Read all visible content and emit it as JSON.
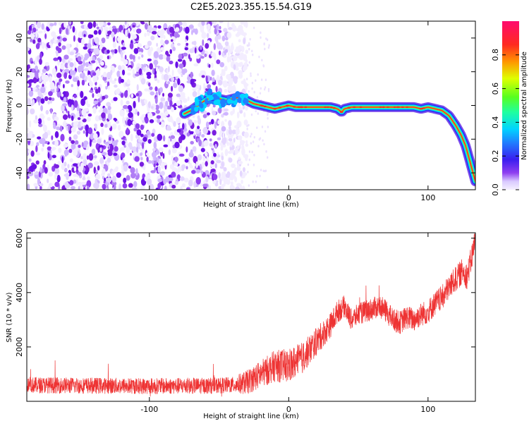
{
  "title": "C2E5.2023.355.15.54.G19",
  "colors": {
    "snr_line": "#ee3333",
    "spectrogram_noise": "#7a1fe0",
    "colormap": [
      "#f5f0ff",
      "#cdb6ff",
      "#8f3ff0",
      "#6a11e6",
      "#2a1ef0",
      "#1f7fff",
      "#00d4ff",
      "#1fff9f",
      "#58ff1f",
      "#dfff00",
      "#ff9500",
      "#ff2a1f",
      "#ff0a6e"
    ]
  },
  "chart_data": [
    {
      "type": "heatmap",
      "name": "spectrogram",
      "xlabel": "Height of straight line (km)",
      "ylabel": "Frequency (Hz)",
      "xlim": [
        -188,
        134
      ],
      "ylim": [
        -50,
        50
      ],
      "xticks": [
        -100,
        0,
        100
      ],
      "yticks": [
        -40,
        -20,
        0,
        20,
        40
      ],
      "noise_region_x": [
        -188,
        -30
      ],
      "ridge": {
        "x": [
          -75,
          -70,
          -65,
          -60,
          -55,
          -50,
          -45,
          -40,
          -35,
          -30,
          -25,
          -20,
          -15,
          -10,
          -5,
          0,
          5,
          10,
          20,
          30,
          35,
          38,
          40,
          45,
          50,
          60,
          70,
          80,
          90,
          95,
          100,
          105,
          110,
          115,
          120,
          124,
          127,
          129,
          131,
          133,
          134
        ],
        "y": [
          -5,
          -3,
          0,
          3,
          5,
          4,
          3,
          4,
          5,
          3,
          1,
          0,
          -1,
          -2,
          -1,
          0,
          -1,
          -1,
          -1,
          -1,
          -2,
          -4,
          -2,
          -1,
          -1,
          -1,
          -1,
          -1,
          -1,
          -2,
          -1,
          -2,
          -3,
          -6,
          -12,
          -18,
          -24,
          -30,
          -36,
          -42,
          -45
        ]
      },
      "colorbar": {
        "label": "Normalized spectral amplitude",
        "ticks": [
          0.0,
          0.2,
          0.4,
          0.6,
          0.8
        ],
        "range": [
          0,
          1
        ]
      }
    },
    {
      "type": "line",
      "name": "snr",
      "xlabel": "Height of straight line (km)",
      "ylabel": "SNR (10 * v/v)",
      "xlim": [
        -188,
        134
      ],
      "ylim": [
        0,
        6200
      ],
      "xticks": [
        -100,
        0,
        100
      ],
      "yticks": [
        2000,
        4000,
        6000
      ],
      "trend": {
        "x": [
          -188,
          -150,
          -100,
          -60,
          -40,
          -30,
          -20,
          -10,
          0,
          10,
          20,
          30,
          35,
          40,
          45,
          50,
          55,
          60,
          65,
          70,
          75,
          80,
          85,
          90,
          95,
          100,
          105,
          110,
          115,
          120,
          125,
          128,
          131,
          134
        ],
        "y": [
          600,
          580,
          560,
          570,
          600,
          700,
          1000,
          1300,
          1300,
          1600,
          2200,
          2800,
          3300,
          3500,
          3000,
          3200,
          3300,
          3400,
          3500,
          3300,
          3000,
          2900,
          3100,
          3000,
          3200,
          3300,
          3600,
          3800,
          4200,
          4500,
          4800,
          4600,
          5200,
          6000
        ]
      },
      "noise_amplitude": {
        "x": [
          -188,
          -40,
          -30,
          0,
          40,
          100,
          134
        ],
        "y": [
          300,
          300,
          450,
          650,
          400,
          450,
          500
        ]
      }
    }
  ]
}
